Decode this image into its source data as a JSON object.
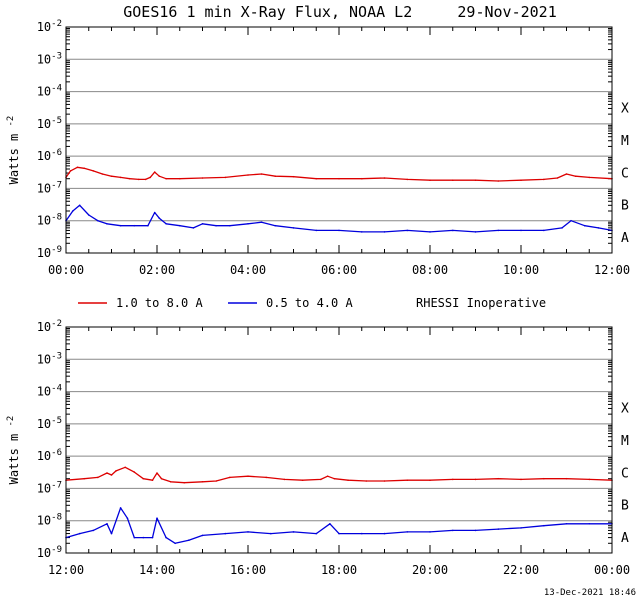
{
  "title": "GOES16 1 min X-Ray Flux, NOAA L2     29-Nov-2021",
  "timestamp": "13-Dec-2021 18:46",
  "legend": {
    "series_long": "1.0 to 8.0 A",
    "series_short": "0.5 to 4.0 A",
    "note": "RHESSI Inoperative"
  },
  "colors": {
    "long": "#dd0000",
    "short": "#0000dd",
    "grid": "#888888",
    "axis": "#000000"
  },
  "chart_data": [
    {
      "type": "line",
      "title": "GOES16 1 min X-Ray Flux, NOAA L2     29-Nov-2021",
      "ylabel": "Watts m",
      "ylabel_superscript": "-2",
      "yscale": "log",
      "ylim": [
        1e-09,
        0.01
      ],
      "ytick_labels": [
        {
          "base": "10",
          "exp": "-2"
        },
        {
          "base": "10",
          "exp": "-3"
        },
        {
          "base": "10",
          "exp": "-4"
        },
        {
          "base": "10",
          "exp": "-5"
        },
        {
          "base": "10",
          "exp": "-6"
        },
        {
          "base": "10",
          "exp": "-7"
        },
        {
          "base": "10",
          "exp": "-8"
        },
        {
          "base": "10",
          "exp": "-9"
        }
      ],
      "class_labels": [
        "X",
        "M",
        "C",
        "B",
        "A"
      ],
      "grid": true,
      "xlim_hours": [
        0,
        12
      ],
      "x_tick_labels": [
        "00:00",
        "02:00",
        "04:00",
        "06:00",
        "08:00",
        "10:00",
        "12:00"
      ],
      "series": [
        {
          "name": "1.0 to 8.0 A",
          "color": "#dd0000",
          "x": [
            0,
            0.1,
            0.25,
            0.4,
            0.6,
            0.8,
            1.0,
            1.2,
            1.4,
            1.6,
            1.75,
            1.85,
            1.95,
            2.05,
            2.2,
            2.5,
            3.0,
            3.5,
            4.0,
            4.3,
            4.6,
            5.0,
            5.5,
            6.0,
            6.5,
            7.0,
            7.5,
            8.0,
            8.5,
            9.0,
            9.5,
            10.0,
            10.5,
            10.8,
            11.0,
            11.2,
            11.5,
            12.0
          ],
          "y": [
            2.2e-07,
            3.5e-07,
            4.5e-07,
            4.2e-07,
            3.5e-07,
            2.8e-07,
            2.4e-07,
            2.2e-07,
            2e-07,
            1.9e-07,
            1.9e-07,
            2.2e-07,
            3.2e-07,
            2.4e-07,
            2e-07,
            2e-07,
            2.1e-07,
            2.2e-07,
            2.6e-07,
            2.8e-07,
            2.4e-07,
            2.3e-07,
            2e-07,
            2e-07,
            2e-07,
            2.1e-07,
            1.9e-07,
            1.8e-07,
            1.8e-07,
            1.8e-07,
            1.7e-07,
            1.8e-07,
            1.9e-07,
            2.1e-07,
            2.8e-07,
            2.4e-07,
            2.2e-07,
            2e-07
          ]
        },
        {
          "name": "0.5 to 4.0 A",
          "color": "#0000dd",
          "x": [
            0,
            0.15,
            0.3,
            0.5,
            0.7,
            0.9,
            1.2,
            1.5,
            1.8,
            1.95,
            2.05,
            2.2,
            2.5,
            2.8,
            3.0,
            3.3,
            3.6,
            4.0,
            4.3,
            4.6,
            5.0,
            5.5,
            6.0,
            6.5,
            7.0,
            7.5,
            8.0,
            8.5,
            9.0,
            9.5,
            10.0,
            10.5,
            10.9,
            11.1,
            11.4,
            11.7,
            12.0
          ],
          "y": [
            1e-08,
            2e-08,
            3e-08,
            1.5e-08,
            1e-08,
            8e-09,
            7e-09,
            7e-09,
            7e-09,
            1.8e-08,
            1.2e-08,
            8e-09,
            7e-09,
            6e-09,
            8e-09,
            7e-09,
            7e-09,
            8e-09,
            9e-09,
            7e-09,
            6e-09,
            5e-09,
            5e-09,
            4.5e-09,
            4.5e-09,
            5e-09,
            4.5e-09,
            5e-09,
            4.5e-09,
            5e-09,
            5e-09,
            5e-09,
            6e-09,
            1e-08,
            7e-09,
            6e-09,
            5e-09
          ]
        }
      ]
    },
    {
      "type": "line",
      "ylabel": "Watts m",
      "ylabel_superscript": "-2",
      "yscale": "log",
      "ylim": [
        1e-09,
        0.01
      ],
      "ytick_labels": [
        {
          "base": "10",
          "exp": "-2"
        },
        {
          "base": "10",
          "exp": "-3"
        },
        {
          "base": "10",
          "exp": "-4"
        },
        {
          "base": "10",
          "exp": "-5"
        },
        {
          "base": "10",
          "exp": "-6"
        },
        {
          "base": "10",
          "exp": "-7"
        },
        {
          "base": "10",
          "exp": "-8"
        },
        {
          "base": "10",
          "exp": "-9"
        }
      ],
      "class_labels": [
        "X",
        "M",
        "C",
        "B",
        "A"
      ],
      "grid": true,
      "xlim_hours": [
        12,
        24
      ],
      "x_tick_labels": [
        "12:00",
        "14:00",
        "16:00",
        "18:00",
        "20:00",
        "22:00",
        "00:00"
      ],
      "series": [
        {
          "name": "1.0 to 8.0 A",
          "color": "#dd0000",
          "x": [
            12.0,
            12.4,
            12.7,
            12.9,
            13.0,
            13.1,
            13.3,
            13.5,
            13.7,
            13.9,
            14.0,
            14.1,
            14.3,
            14.6,
            15.0,
            15.3,
            15.6,
            16.0,
            16.4,
            16.8,
            17.2,
            17.6,
            17.75,
            17.9,
            18.2,
            18.6,
            19.0,
            19.5,
            20.0,
            20.5,
            21.0,
            21.5,
            22.0,
            22.5,
            23.0,
            23.5,
            24.0
          ],
          "y": [
            1.8e-07,
            2e-07,
            2.2e-07,
            3e-07,
            2.6e-07,
            3.5e-07,
            4.5e-07,
            3.2e-07,
            2e-07,
            1.8e-07,
            3e-07,
            2e-07,
            1.6e-07,
            1.5e-07,
            1.6e-07,
            1.7e-07,
            2.2e-07,
            2.4e-07,
            2.2e-07,
            1.9e-07,
            1.8e-07,
            1.9e-07,
            2.4e-07,
            2e-07,
            1.8e-07,
            1.7e-07,
            1.7e-07,
            1.8e-07,
            1.8e-07,
            1.9e-07,
            1.9e-07,
            2e-07,
            1.9e-07,
            2e-07,
            2e-07,
            1.9e-07,
            1.8e-07
          ]
        },
        {
          "name": "0.5 to 4.0 A",
          "color": "#0000dd",
          "x": [
            12.0,
            12.3,
            12.6,
            12.9,
            13.0,
            13.2,
            13.35,
            13.5,
            13.7,
            13.9,
            14.0,
            14.2,
            14.4,
            14.7,
            15.0,
            15.5,
            16.0,
            16.5,
            17.0,
            17.5,
            17.8,
            18.0,
            18.5,
            19.0,
            19.5,
            20.0,
            20.5,
            21.0,
            21.5,
            22.0,
            22.5,
            23.0,
            23.5,
            24.0
          ],
          "y": [
            3e-09,
            4e-09,
            5e-09,
            8e-09,
            4e-09,
            2.5e-08,
            1.2e-08,
            3e-09,
            3e-09,
            3e-09,
            1.2e-08,
            3e-09,
            2e-09,
            2.5e-09,
            3.5e-09,
            4e-09,
            4.5e-09,
            4e-09,
            4.5e-09,
            4e-09,
            8e-09,
            4e-09,
            4e-09,
            4e-09,
            4.5e-09,
            4.5e-09,
            5e-09,
            5e-09,
            5.5e-09,
            6e-09,
            7e-09,
            8e-09,
            8e-09,
            8e-09
          ]
        }
      ]
    }
  ]
}
